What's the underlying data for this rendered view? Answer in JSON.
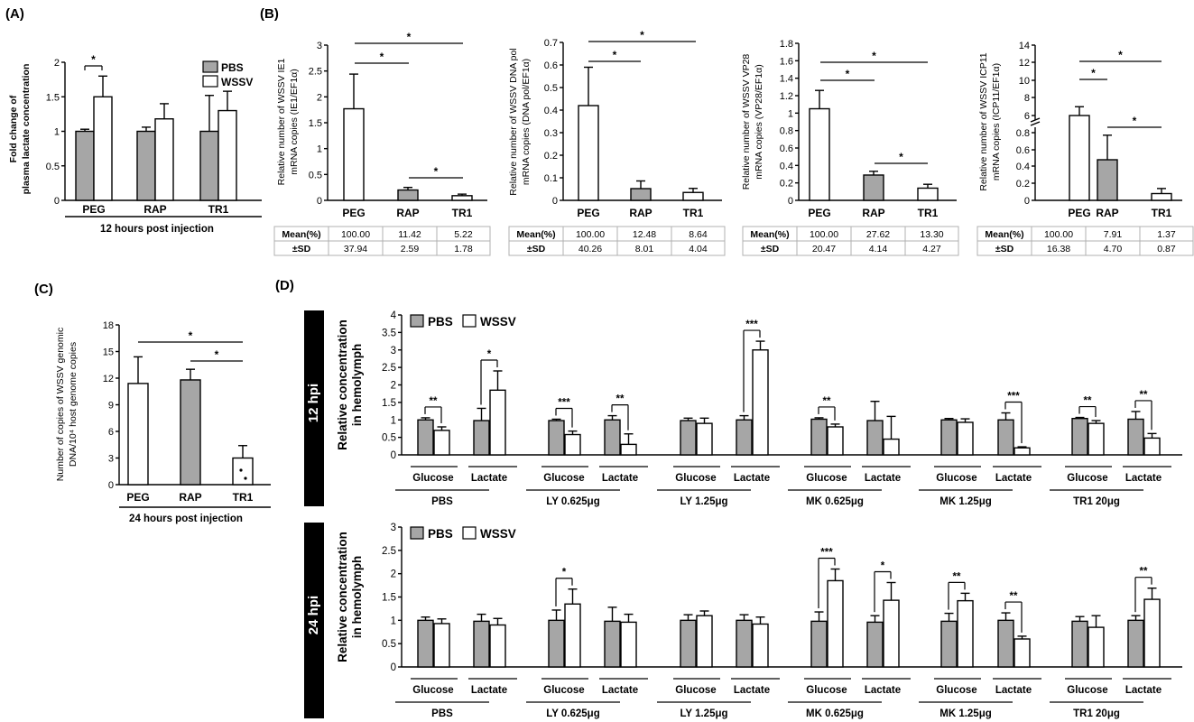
{
  "panels": {
    "A": "(A)",
    "B": "(B)",
    "C": "(C)",
    "D": "(D)"
  },
  "colors": {
    "pbs": "#a6a6a6",
    "wssv": "#ffffff",
    "line": "#000000",
    "table_border": "#b0b0b0",
    "time_box": "#000000"
  },
  "panel_d": {
    "legend": [
      "PBS",
      "WSSV"
    ],
    "ylabel": [
      "Relative concentration",
      "in hemolymph"
    ],
    "row_labels": [
      "12 hpi",
      "24 hpi"
    ],
    "metabolites": [
      "Glucose",
      "Lactate"
    ],
    "groups": [
      "PBS",
      "LY 0.625μg",
      "LY 1.25μg",
      "MK 0.625μg",
      "MK 1.25μg",
      "TR1 20μg"
    ]
  },
  "chart_data": [
    {
      "id": "A",
      "type": "bar",
      "ylabel": [
        "Fold change of",
        "plasma lactate concentration"
      ],
      "ylim": [
        0,
        2
      ],
      "yticks": [
        "0",
        "0.5",
        "1",
        "1.5",
        "2"
      ],
      "categories": [
        "PEG",
        "RAP",
        "TR1"
      ],
      "series": [
        {
          "name": "PBS",
          "values": [
            1.0,
            1.0,
            1.0
          ],
          "errors": [
            0.03,
            0.06,
            0.52
          ]
        },
        {
          "name": "WSSV",
          "values": [
            1.5,
            1.18,
            1.3
          ],
          "errors": [
            0.3,
            0.22,
            0.28
          ]
        }
      ],
      "legend": [
        "PBS",
        "WSSV"
      ],
      "group_label": "12 hours post injection",
      "significance": [
        {
          "text": "*"
        }
      ]
    },
    {
      "id": "B1",
      "type": "bar",
      "ylabel": [
        "Relative number of WSSV IE1",
        "mRNA copies (IE1/EF1α)"
      ],
      "ylim": [
        0,
        3
      ],
      "yticks": [
        "0",
        "0.5",
        "1",
        "1.5",
        "2",
        "2.5",
        "3"
      ],
      "categories": [
        "PEG",
        "RAP",
        "TR1"
      ],
      "values": [
        1.77,
        0.2,
        0.09
      ],
      "errors": [
        0.67,
        0.05,
        0.03
      ],
      "fills": [
        "white",
        "gray",
        "white"
      ],
      "significance": [
        {
          "text": "*"
        },
        {
          "text": "*"
        },
        {
          "text": "*"
        }
      ],
      "table": {
        "rows": [
          [
            "Mean(%)",
            "100.00",
            "11.42",
            "5.22"
          ],
          [
            "±SD",
            "37.94",
            "2.59",
            "1.78"
          ]
        ]
      }
    },
    {
      "id": "B2",
      "type": "bar",
      "ylabel": [
        "Relative number of WSSV DNA pol",
        "mRNA copies (DNA pol/EF1α)"
      ],
      "ylim": [
        0,
        0.7
      ],
      "yticks": [
        "0",
        "0.1",
        "0.2",
        "0.3",
        "0.4",
        "0.5",
        "0.6",
        "0.7"
      ],
      "categories": [
        "PEG",
        "RAP",
        "TR1"
      ],
      "values": [
        0.42,
        0.052,
        0.035
      ],
      "errors": [
        0.17,
        0.034,
        0.018
      ],
      "fills": [
        "white",
        "gray",
        "white"
      ],
      "significance": [
        {
          "text": "*"
        },
        {
          "text": "*"
        }
      ],
      "table": {
        "rows": [
          [
            "Mean(%)",
            "100.00",
            "12.48",
            "8.64"
          ],
          [
            "±SD",
            "40.26",
            "8.01",
            "4.04"
          ]
        ]
      }
    },
    {
      "id": "B3",
      "type": "bar",
      "ylabel": [
        "Relative number of WSSV VP28",
        "mRNA copies (VP28/EF1α)"
      ],
      "ylim": [
        0,
        1.8
      ],
      "yticks": [
        "0",
        "0.2",
        "0.4",
        "0.6",
        "0.8",
        "1",
        "1.2",
        "1.4",
        "1.6",
        "1.8"
      ],
      "categories": [
        "PEG",
        "RAP",
        "TR1"
      ],
      "values": [
        1.05,
        0.29,
        0.14
      ],
      "errors": [
        0.21,
        0.043,
        0.044
      ],
      "fills": [
        "white",
        "gray",
        "white"
      ],
      "significance": [
        {
          "text": "*"
        },
        {
          "text": "*"
        },
        {
          "text": "*"
        }
      ],
      "table": {
        "rows": [
          [
            "Mean(%)",
            "100.00",
            "27.62",
            "13.30"
          ],
          [
            "±SD",
            "20.47",
            "4.14",
            "4.27"
          ]
        ]
      }
    },
    {
      "id": "B4",
      "type": "bar",
      "ylabel": [
        "Relative number of WSSV ICP11",
        "mRNA copies (ICP11/EF1α)"
      ],
      "yticks": [
        "0",
        "0.2",
        "0.4",
        "0.6",
        "0.8",
        "6",
        "8",
        "10",
        "12",
        "14"
      ],
      "broken_axis": true,
      "categories": [
        "PEG",
        "RAP",
        "TR1"
      ],
      "values": [
        6.0,
        0.48,
        0.08
      ],
      "errors": [
        1.0,
        0.29,
        0.06
      ],
      "fills": [
        "white",
        "gray",
        "white"
      ],
      "significance": [
        {
          "text": "*"
        },
        {
          "text": "*"
        },
        {
          "text": "*"
        }
      ],
      "table": {
        "rows": [
          [
            "Mean(%)",
            "100.00",
            "7.91",
            "1.37"
          ],
          [
            "±SD",
            "16.38",
            "4.70",
            "0.87"
          ]
        ]
      }
    },
    {
      "id": "C",
      "type": "bar",
      "ylabel": [
        "Number of copies of WSSV genomic",
        "DNA/10⁴ host genome copies"
      ],
      "ylim": [
        0,
        18
      ],
      "yticks": [
        "0",
        "3",
        "6",
        "9",
        "12",
        "15",
        "18"
      ],
      "categories": [
        "PEG",
        "RAP",
        "TR1"
      ],
      "values": [
        11.4,
        11.8,
        3.0
      ],
      "errors": [
        3.0,
        1.2,
        1.4
      ],
      "fills": [
        "white",
        "gray",
        "white"
      ],
      "significance": [
        {
          "text": "*"
        },
        {
          "text": "*"
        }
      ],
      "group_label": "24 hours post injection"
    },
    {
      "id": "D12",
      "type": "bar",
      "ylim": [
        0,
        4
      ],
      "yticks": [
        "0",
        "0.5",
        "1",
        "1.5",
        "2",
        "2.5",
        "3",
        "3.5",
        "4"
      ],
      "pbs": [
        1.0,
        0.98,
        0.98,
        1.0,
        0.98,
        1.0,
        1.02,
        0.98,
        1.0,
        1.0,
        1.04,
        1.02
      ],
      "pbs_err": [
        0.06,
        0.35,
        0.04,
        0.12,
        0.07,
        0.12,
        0.04,
        0.55,
        0.04,
        0.2,
        0.03,
        0.22
      ],
      "wssv": [
        0.7,
        1.85,
        0.58,
        0.3,
        0.9,
        3.0,
        0.8,
        0.45,
        0.93,
        0.2,
        0.9,
        0.48
      ],
      "wssv_err": [
        0.1,
        0.55,
        0.1,
        0.3,
        0.15,
        0.25,
        0.08,
        0.65,
        0.1,
        0.03,
        0.08,
        0.13
      ],
      "significance": [
        "**",
        "*",
        "***",
        "**",
        "",
        "***",
        "**",
        "",
        "",
        "***",
        "**",
        "**"
      ]
    },
    {
      "id": "D24",
      "type": "bar",
      "ylim": [
        0,
        3
      ],
      "yticks": [
        "0",
        "0.5",
        "1",
        "1.5",
        "2",
        "2.5",
        "3"
      ],
      "pbs": [
        1.0,
        0.98,
        1.0,
        0.98,
        1.0,
        1.0,
        0.98,
        0.96,
        0.98,
        1.0,
        0.98,
        1.0
      ],
      "pbs_err": [
        0.07,
        0.15,
        0.22,
        0.3,
        0.12,
        0.12,
        0.2,
        0.14,
        0.17,
        0.16,
        0.1,
        0.1
      ],
      "wssv": [
        0.93,
        0.9,
        1.35,
        0.96,
        1.1,
        0.92,
        1.85,
        1.43,
        1.42,
        0.6,
        0.85,
        1.45
      ],
      "wssv_err": [
        0.1,
        0.14,
        0.32,
        0.17,
        0.1,
        0.15,
        0.25,
        0.38,
        0.16,
        0.06,
        0.25,
        0.24
      ],
      "significance": [
        "",
        "",
        "*",
        "",
        "",
        "",
        "***",
        "*",
        "**",
        "**",
        "",
        "**"
      ]
    }
  ]
}
